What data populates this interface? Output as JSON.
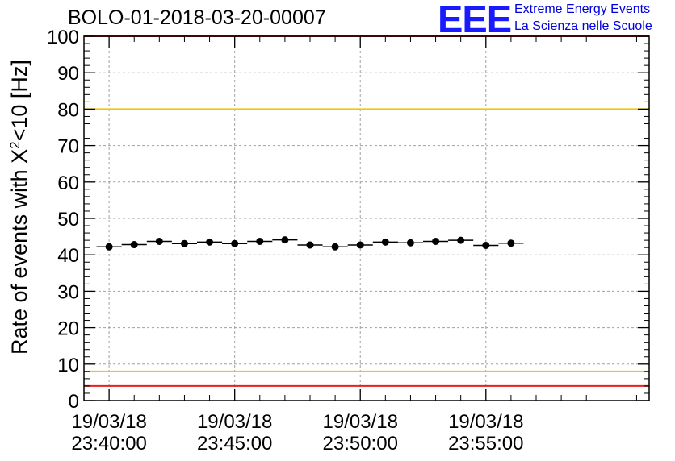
{
  "title": "BOLO-01-2018-03-20-00007",
  "logo": {
    "mark": "EEE",
    "line1": "Extreme Energy Events",
    "line2": "La Scienza nelle Scuole"
  },
  "colors": {
    "red_line": "#e8201c",
    "yellow_line": "#f0c800",
    "marker": "#000000",
    "grid": "#a0a0a0"
  },
  "chart_data": {
    "type": "scatter",
    "title": "BOLO-01-2018-03-20-00007",
    "ylabel_prefix": "Rate of events with X",
    "ylabel_sup": "2",
    "ylabel_suffix": "<10 [Hz]",
    "xlabel": "",
    "ylim": [
      0,
      100
    ],
    "xlim_minutes": [
      -1,
      21.5
    ],
    "y_ticks": [
      "0",
      "10",
      "20",
      "30",
      "40",
      "50",
      "60",
      "70",
      "80",
      "90",
      "100"
    ],
    "x_ticks": [
      {
        "minutes": 0,
        "date": "19/03/18",
        "time": "23:40:00"
      },
      {
        "minutes": 5,
        "date": "19/03/18",
        "time": "23:45:00"
      },
      {
        "minutes": 10,
        "date": "19/03/18",
        "time": "23:50:00"
      },
      {
        "minutes": 15,
        "date": "19/03/18",
        "time": "23:55:00"
      }
    ],
    "reference_lines": [
      {
        "y": 100,
        "color": "red"
      },
      {
        "y": 80,
        "color": "yellow"
      },
      {
        "y": 8,
        "color": "yellow"
      },
      {
        "y": 4,
        "color": "red"
      }
    ],
    "bin_width_minutes": 1,
    "series": [
      {
        "name": "rate",
        "x_minutes": [
          0,
          1,
          2,
          3,
          4,
          5,
          6,
          7,
          8,
          9,
          10,
          11,
          12,
          13,
          14,
          15,
          16
        ],
        "values": [
          42.2,
          42.8,
          43.7,
          43.1,
          43.5,
          43.1,
          43.7,
          44.1,
          42.7,
          42.2,
          42.7,
          43.5,
          43.3,
          43.7,
          44.0,
          42.6,
          43.2
        ]
      }
    ],
    "grid": true
  }
}
